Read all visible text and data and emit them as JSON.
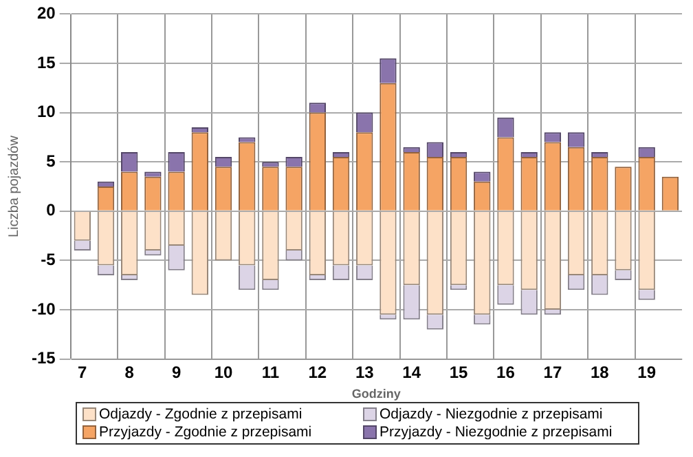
{
  "chart_data": {
    "type": "bar",
    "stacked": true,
    "xlabel": "Godziny",
    "ylabel": "Liczba pojazdów",
    "categories": [
      "7",
      null,
      "8",
      null,
      "9",
      null,
      "10",
      null,
      "11",
      null,
      "12",
      null,
      "13",
      null,
      "14",
      null,
      "15",
      null,
      "16",
      null,
      "17",
      null,
      "18",
      null,
      "19",
      null
    ],
    "series": [
      {
        "name": "Odjazdy - Zgodnie z przepisami",
        "color": "#fde1c8",
        "values": [
          -3,
          -5.5,
          -6.5,
          -4,
          -3.5,
          -8.5,
          -5,
          -5.5,
          -7,
          -4,
          -6.5,
          -5.5,
          -5.5,
          -10.5,
          -7.5,
          -10.5,
          -7.5,
          -10.5,
          -7.5,
          -8,
          -10,
          -6.5,
          -6.5,
          -6,
          -8,
          null
        ]
      },
      {
        "name": "Odjazdy - Niezgodnie z przepisami",
        "color": "#dcd4e6",
        "values": [
          -1,
          -1,
          -0.5,
          -0.5,
          -2.5,
          null,
          null,
          -2.5,
          -1,
          -1,
          -0.5,
          -1.5,
          -1.5,
          -0.5,
          -3.5,
          -1.5,
          -0.5,
          -1,
          -2,
          -2.5,
          -0.5,
          -1.5,
          -2,
          -1,
          -1,
          null
        ]
      },
      {
        "name": "Przyjazdy - Zgodnie z przepisami",
        "color": "#f5a464",
        "values": [
          null,
          2.5,
          4,
          3.5,
          4,
          8,
          4.5,
          7,
          4.5,
          4.5,
          10,
          5.5,
          8,
          13,
          6,
          5.5,
          5.5,
          3,
          7.5,
          5.5,
          7,
          6.5,
          5.5,
          4.5,
          5.5,
          3.5
        ]
      },
      {
        "name": "Przyjazdy - Niezgodnie z przepisami",
        "color": "#8a74ac",
        "values": [
          null,
          0.5,
          2,
          0.5,
          2,
          0.5,
          1,
          0.5,
          0.5,
          1,
          1,
          0.5,
          2,
          2.5,
          0.5,
          1.5,
          0.5,
          1,
          2,
          0.5,
          1,
          1.5,
          0.5,
          null,
          1,
          null
        ]
      }
    ],
    "ylim": [
      -15,
      20
    ],
    "yticks": [
      -15,
      -10,
      -5,
      0,
      5,
      10,
      15,
      20
    ],
    "grid": true,
    "legend": "bottom"
  }
}
